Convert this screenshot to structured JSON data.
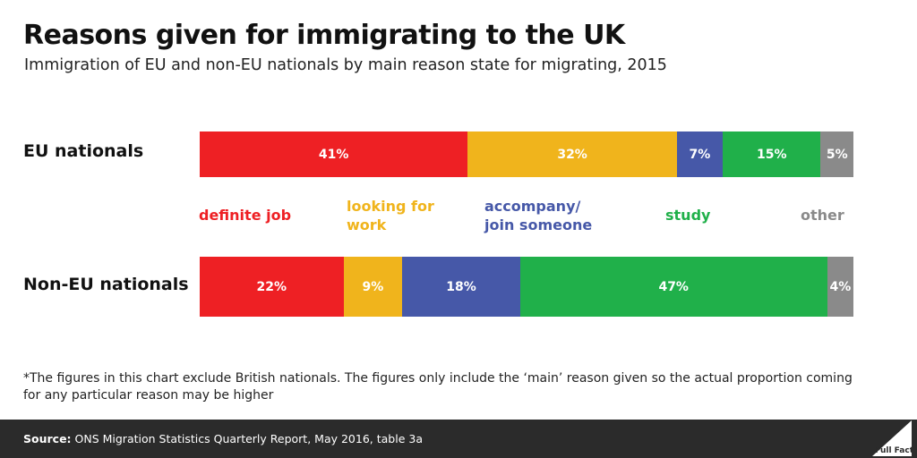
{
  "header": {
    "title": "Reasons given for immigrating to the UK",
    "subtitle": "Immigration of EU and non-EU nationals by main reason state for migrating, 2015"
  },
  "chart_data": {
    "type": "bar",
    "orientation": "horizontal-stacked",
    "title": "Reasons given for immigrating to the UK",
    "subtitle": "Immigration of EU and non-EU nationals by main reason state for migrating, 2015",
    "categories": [
      "EU nationals",
      "Non-EU nationals"
    ],
    "series": [
      {
        "name": "definite job",
        "values": [
          41,
          22
        ],
        "labels": [
          "41%",
          "22%"
        ],
        "color": "#ee2024"
      },
      {
        "name": "looking for\nwork",
        "values": [
          32,
          9
        ],
        "labels": [
          "32%",
          "9%"
        ],
        "color": "#f0b41c"
      },
      {
        "name": "accompany/\njoin someone",
        "values": [
          7,
          18
        ],
        "labels": [
          "7%",
          "18%"
        ],
        "color": "#4658a8"
      },
      {
        "name": "study",
        "values": [
          15,
          47
        ],
        "labels": [
          "15%",
          "47%"
        ],
        "color": "#20b04a"
      },
      {
        "name": "other",
        "values": [
          5,
          4
        ],
        "labels": [
          "5%",
          "4%"
        ],
        "color": "#8a8a8a"
      }
    ],
    "legend": "between bars",
    "grid": false
  },
  "footnote": "*The figures in this chart exclude British nationals. The figures only include the ‘main’ reason given so the actual proportion coming for any particular reason may be higher",
  "footer": {
    "source_label": "Source:",
    "source_text": " ONS Migration Statistics Quarterly Report, May 2016, table 3a",
    "logo_text": "Full Fact",
    "background_color": "#2b2b2b"
  }
}
